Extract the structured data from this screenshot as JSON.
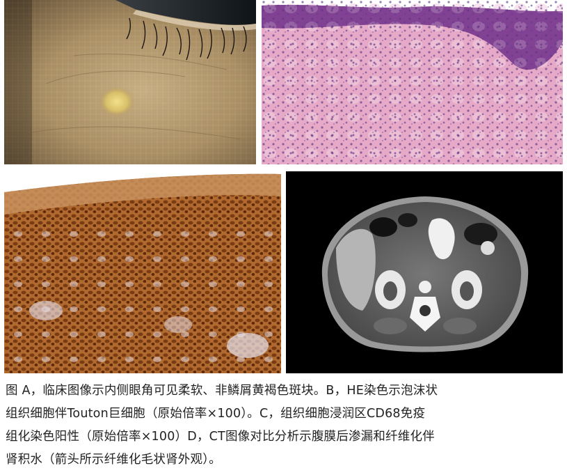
{
  "figure": {
    "panels": [
      {
        "id": "A",
        "content": "clinical photo"
      },
      {
        "id": "B",
        "content": "HE stain"
      },
      {
        "id": "C",
        "content": "CD68 immunostain"
      },
      {
        "id": "D",
        "content": "CT scan"
      }
    ],
    "caption_lines": [
      "图 A，临床图像示内侧眼角可见柔软、非鳞屑黄褐色斑块。B，HE染色示泡沫状",
      "组织细胞伴Touton巨细胞（原始倍率×100）。C，组织细胞浸润区CD68免疫",
      "组化染色阳性（原始倍率×100）D，CT图像对比分析示腹膜后渗漏和纤维化伴",
      "肾积水（箭头所示纤维化毛状肾外观）。"
    ]
  }
}
